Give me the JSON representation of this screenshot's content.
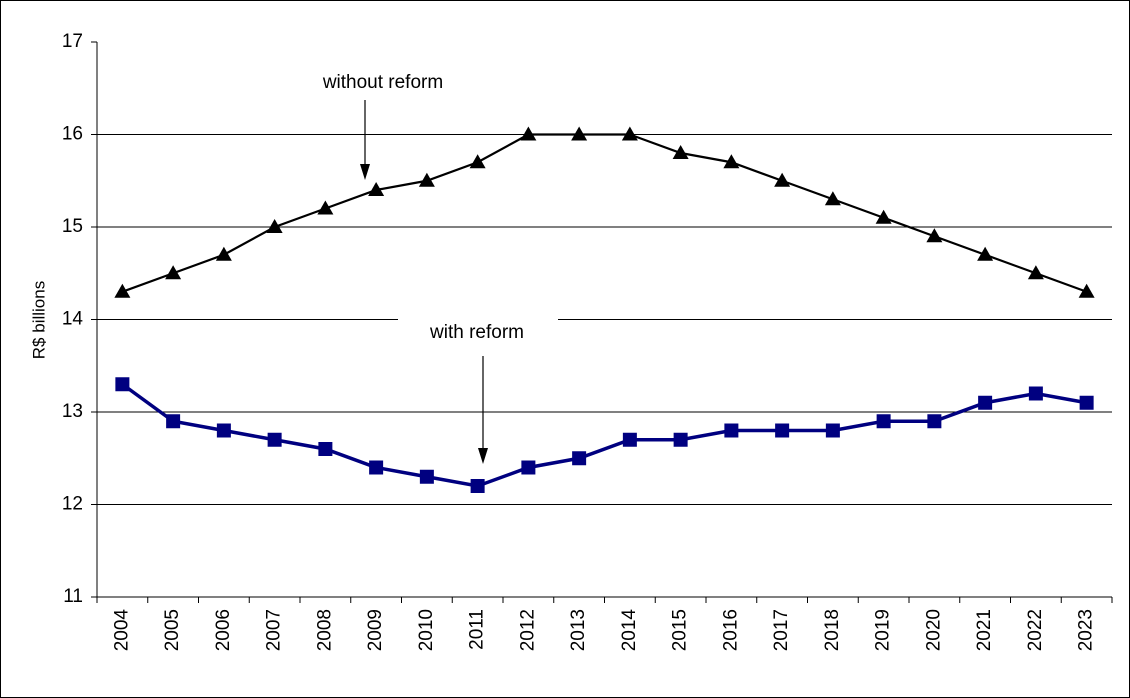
{
  "chart_data": {
    "type": "line",
    "y_label": "R$ billions",
    "categories": [
      "2004",
      "2005",
      "2006",
      "2007",
      "2008",
      "2009",
      "2010",
      "2011",
      "2012",
      "2013",
      "2014",
      "2015",
      "2016",
      "2017",
      "2018",
      "2019",
      "2020",
      "2021",
      "2022",
      "2023"
    ],
    "series": [
      {
        "name": "without reform",
        "color": "#000000",
        "marker": "triangle",
        "values": [
          14.3,
          14.5,
          14.7,
          15.0,
          15.2,
          15.4,
          15.5,
          15.7,
          16.0,
          16.0,
          16.0,
          15.8,
          15.7,
          15.5,
          15.3,
          15.1,
          14.9,
          14.7,
          14.5,
          14.3
        ]
      },
      {
        "name": "with reform",
        "color": "#000080",
        "marker": "square",
        "values": [
          13.3,
          12.9,
          12.8,
          12.7,
          12.6,
          12.4,
          12.3,
          12.2,
          12.4,
          12.5,
          12.7,
          12.7,
          12.8,
          12.8,
          12.8,
          12.9,
          12.9,
          13.1,
          13.2,
          13.1
        ]
      }
    ],
    "ylim": [
      11,
      17
    ],
    "yticks": [
      11,
      12,
      13,
      14,
      15,
      16,
      17
    ],
    "grid": true
  }
}
